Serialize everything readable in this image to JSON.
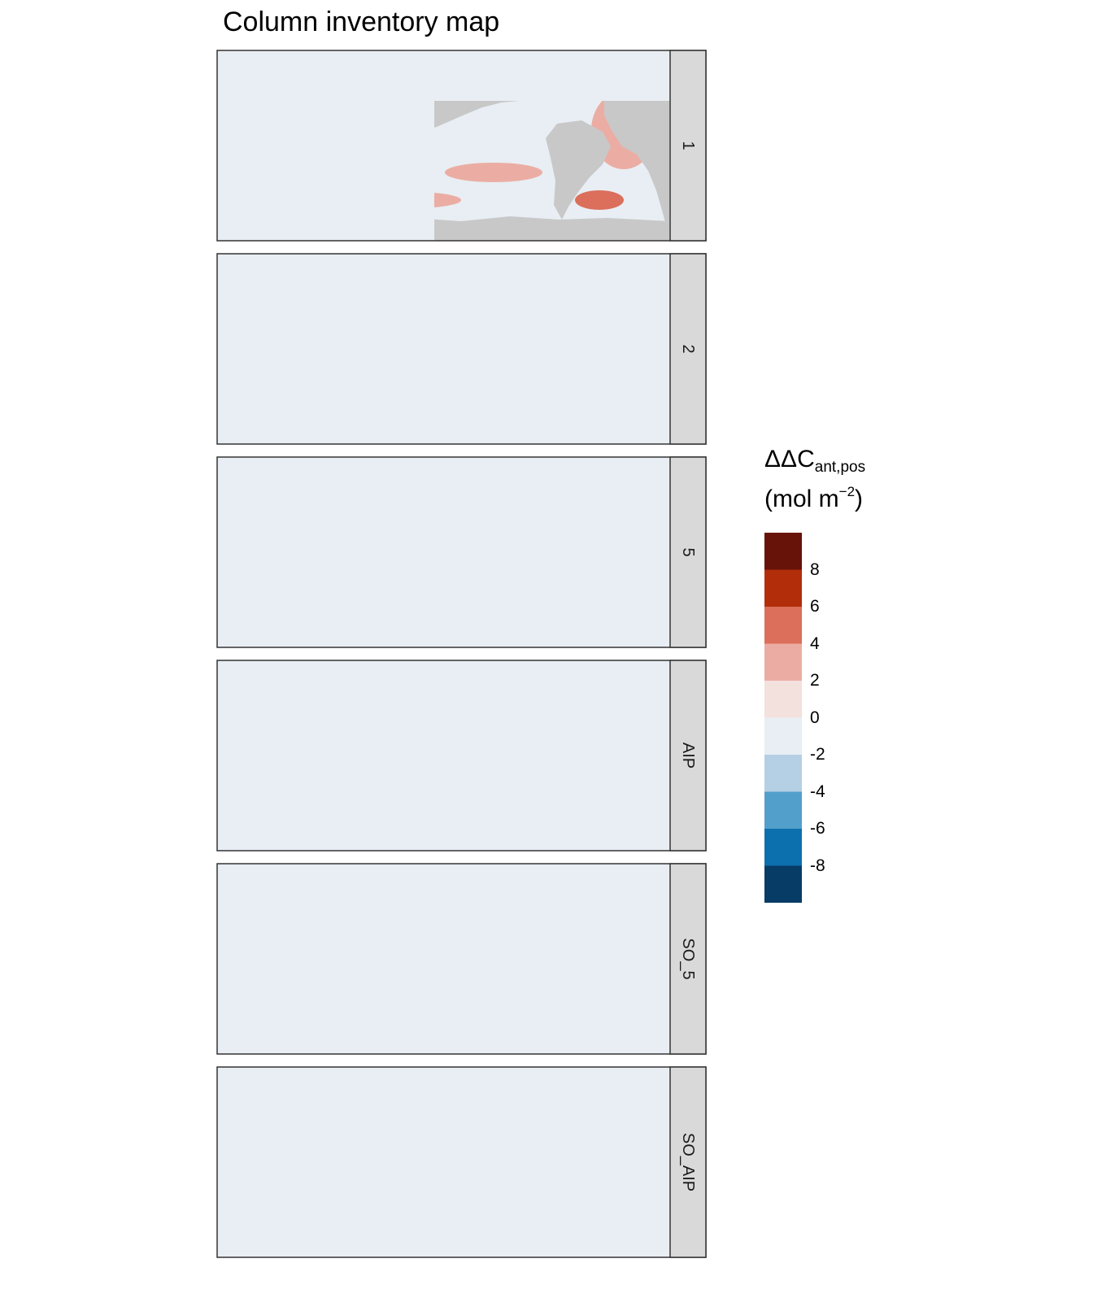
{
  "chart_data": {
    "type": "heatmap",
    "title": "Column inventory map",
    "facets": [
      "1",
      "2",
      "5",
      "AIP",
      "SO_5",
      "SO_AIP"
    ],
    "legend": {
      "title_main": "ΔΔC",
      "title_sub": "ant,pos",
      "unit_prefix": "(mol m",
      "unit_sup": "−2",
      "unit_suffix": ")",
      "breaks": [
        "8",
        "6",
        "4",
        "2",
        "0",
        "-2",
        "-4",
        "-6",
        "-8"
      ],
      "bins": [
        {
          "range": [
            8,
            10
          ],
          "color": "#67130a"
        },
        {
          "range": [
            6,
            8
          ],
          "color": "#b22e0a"
        },
        {
          "range": [
            4,
            6
          ],
          "color": "#db6f5b"
        },
        {
          "range": [
            2,
            4
          ],
          "color": "#ebada3"
        },
        {
          "range": [
            0,
            2
          ],
          "color": "#f3e1de"
        },
        {
          "range": [
            -2,
            0
          ],
          "color": "#e8eef3"
        },
        {
          "range": [
            -4,
            -2
          ],
          "color": "#b5cfe4"
        },
        {
          "range": [
            -6,
            -4
          ],
          "color": "#529fcb"
        },
        {
          "range": [
            -8,
            -6
          ],
          "color": "#0d70ae"
        },
        {
          "range": [
            -10,
            -8
          ],
          "color": "#073c66"
        }
      ],
      "placement": "right"
    },
    "land_color": "#c8c8c8",
    "ocean_background": "#e8eef3",
    "strip_color": "#d9d9d9"
  }
}
